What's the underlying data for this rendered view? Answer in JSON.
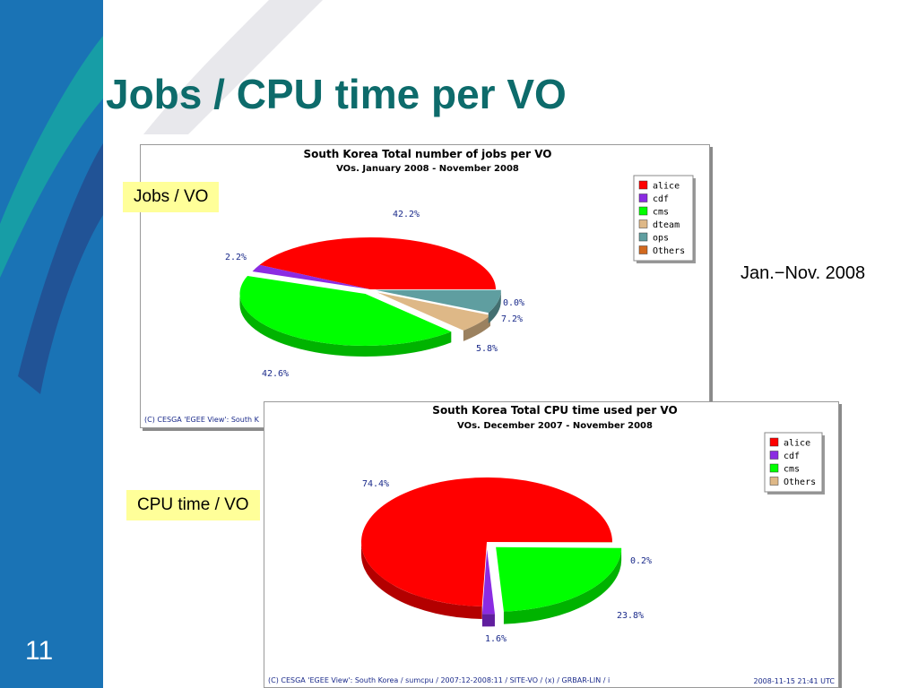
{
  "slide": {
    "title": "Jobs / CPU time per VO",
    "page_number": "11",
    "date_range": "Jan.−Nov. 2008",
    "label_jobs": "Jobs / VO",
    "label_cpu": "CPU time / VO"
  },
  "chart_data": [
    {
      "type": "pie",
      "title": "South Korea Total number of jobs per VO",
      "subtitle": "VOs. January 2008 - November 2008",
      "labels": [
        "alice",
        "cdf",
        "cms",
        "dteam",
        "ops",
        "Others"
      ],
      "values": [
        42.2,
        2.2,
        42.6,
        5.8,
        7.2,
        0.0
      ],
      "value_labels": [
        "42.2%",
        "2.2%",
        "42.6%",
        "5.8%",
        "7.2%",
        "0.0%"
      ],
      "colors": [
        "#ff0000",
        "#8b2be2",
        "#00ff00",
        "#deb887",
        "#5f9ea0",
        "#d2691e"
      ],
      "footer_left": "(C) CESGA 'EGEE View': South K",
      "legend": "top-right"
    },
    {
      "type": "pie",
      "title": "South Korea Total CPU time used per VO",
      "subtitle": "VOs. December 2007 - November 2008",
      "labels": [
        "alice",
        "cdf",
        "cms",
        "Others"
      ],
      "values": [
        74.4,
        1.6,
        23.8,
        0.2
      ],
      "value_labels": [
        "74.4%",
        "1.6%",
        "23.8%",
        "0.2%"
      ],
      "colors": [
        "#ff0000",
        "#8b2be2",
        "#00ff00",
        "#deb887"
      ],
      "footer_left": "(C) CESGA 'EGEE View': South Korea / sumcpu / 2007:12-2008:11 / SITE-VO /  (x) / GRBAR-LIN / i",
      "footer_right": "2008-11-15 21:41 UTC",
      "legend": "top-right"
    }
  ]
}
